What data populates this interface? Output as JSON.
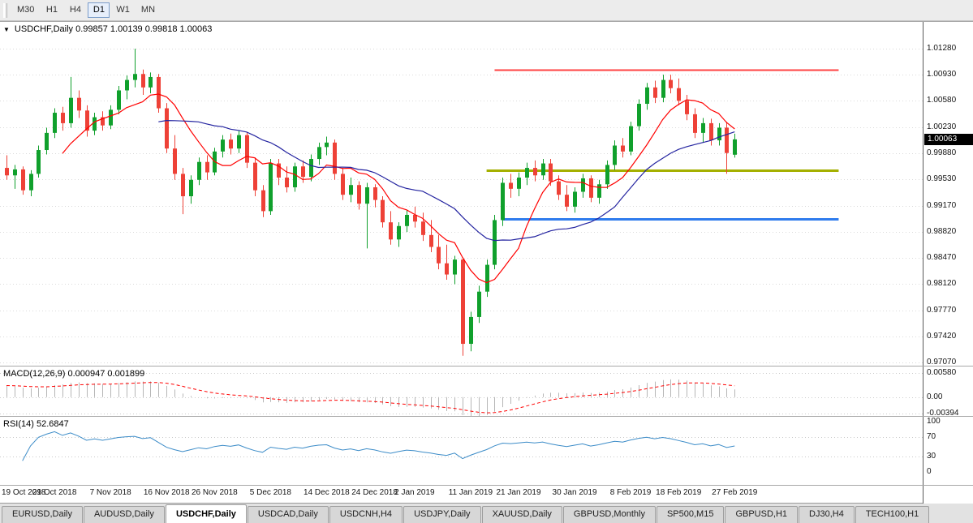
{
  "icons": {
    "collapse_glyph": "▼"
  },
  "toolbar": {
    "timeframes": [
      "M30",
      "H1",
      "H4",
      "D1",
      "W1",
      "MN"
    ],
    "selected": "D1"
  },
  "chart": {
    "title_text": "USDCHF,Daily  0.99857 1.00139 0.99818 1.00063",
    "current_price": "1.00063"
  },
  "chart_data": {
    "type": "candlestick",
    "symbol": "USDCHF",
    "timeframe": "Daily",
    "last_ohlc": {
      "open": 0.99857,
      "high": 1.00139,
      "low": 0.99818,
      "close": 1.00063
    },
    "colors": {
      "up_candle": "#10a02c",
      "down_candle": "#ee4137",
      "grid": "#dadada"
    },
    "y_axis": {
      "top_value": 1.0128,
      "bottom_value": 0.9707,
      "labels": [
        "1.01280",
        "1.00930",
        "1.00580",
        "1.00230",
        "0.99880",
        "0.99530",
        "0.99170",
        "0.98820",
        "0.98470",
        "0.98120",
        "0.97770",
        "0.97420",
        "0.97070"
      ]
    },
    "x_labels": [
      {
        "label": "19 Oct 2018",
        "bar": 0
      },
      {
        "label": "29 Oct 2018",
        "bar": 6
      },
      {
        "label": "7 Nov 2018",
        "bar": 13
      },
      {
        "label": "16 Nov 2018",
        "bar": 20
      },
      {
        "label": "26 Nov 2018",
        "bar": 26
      },
      {
        "label": "5 Dec 2018",
        "bar": 33
      },
      {
        "label": "14 Dec 2018",
        "bar": 40
      },
      {
        "label": "24 Dec 2018",
        "bar": 46
      },
      {
        "label": "2 Jan 2019",
        "bar": 51
      },
      {
        "label": "11 Jan 2019",
        "bar": 58
      },
      {
        "label": "21 Jan 2019",
        "bar": 64
      },
      {
        "label": "30 Jan 2019",
        "bar": 71
      },
      {
        "label": "8 Feb 2019",
        "bar": 78
      },
      {
        "label": "18 Feb 2019",
        "bar": 84
      },
      {
        "label": "27 Feb 2019",
        "bar": 91
      }
    ],
    "candles": [
      [
        0.9968,
        0.9985,
        0.9952,
        0.9958
      ],
      [
        0.9958,
        0.9972,
        0.994,
        0.9966
      ],
      [
        0.9966,
        0.997,
        0.9932,
        0.9938
      ],
      [
        0.9938,
        0.9965,
        0.993,
        0.996
      ],
      [
        0.996,
        0.9998,
        0.9955,
        0.9992
      ],
      [
        0.9992,
        1.0022,
        0.9986,
        1.0015
      ],
      [
        1.0015,
        1.0048,
        1.0008,
        1.0042
      ],
      [
        1.0042,
        1.005,
        1.0018,
        1.0028
      ],
      [
        1.0028,
        1.009,
        1.0022,
        1.0062
      ],
      [
        1.0062,
        1.0072,
        1.0035,
        1.0045
      ],
      [
        1.0045,
        1.0052,
        1.001,
        1.0018
      ],
      [
        1.0018,
        1.0042,
        1.0012,
        1.0036
      ],
      [
        1.0036,
        1.0044,
        1.0018,
        1.0025
      ],
      [
        1.0025,
        1.0052,
        1.002,
        1.0046
      ],
      [
        1.0046,
        1.0078,
        1.004,
        1.0072
      ],
      [
        1.0072,
        1.0092,
        1.006,
        1.0086
      ],
      [
        1.0086,
        1.0128,
        1.0076,
        1.0094
      ],
      [
        1.0094,
        1.01,
        1.0066,
        1.0076
      ],
      [
        1.0076,
        1.0096,
        1.0068,
        1.009
      ],
      [
        1.009,
        1.0094,
        1.0042,
        1.0048
      ],
      [
        1.0048,
        1.0055,
        0.9988,
        0.9994
      ],
      [
        0.9994,
        1.0012,
        0.9952,
        0.996
      ],
      [
        0.996,
        0.9968,
        0.9906,
        0.993
      ],
      [
        0.993,
        0.9958,
        0.992,
        0.9952
      ],
      [
        0.9952,
        0.9982,
        0.9945,
        0.9976
      ],
      [
        0.9976,
        0.9985,
        0.9952,
        0.9962
      ],
      [
        0.9962,
        0.9995,
        0.9958,
        0.999
      ],
      [
        0.999,
        1.0012,
        0.9982,
        1.0006
      ],
      [
        1.0006,
        1.0014,
        0.9986,
        0.9994
      ],
      [
        0.9994,
        1.0018,
        0.9988,
        1.0012
      ],
      [
        1.0012,
        1.0016,
        0.9968,
        0.9975
      ],
      [
        0.9975,
        0.9982,
        0.993,
        0.9938
      ],
      [
        0.9938,
        0.9945,
        0.9902,
        0.991
      ],
      [
        0.991,
        0.998,
        0.9905,
        0.9974
      ],
      [
        0.9974,
        0.998,
        0.9945,
        0.9955
      ],
      [
        0.9955,
        0.997,
        0.9935,
        0.9942
      ],
      [
        0.9942,
        0.9975,
        0.9936,
        0.997
      ],
      [
        0.997,
        0.9978,
        0.9948,
        0.9956
      ],
      [
        0.9956,
        0.9986,
        0.995,
        0.998
      ],
      [
        0.998,
        1.0002,
        0.9972,
        0.9996
      ],
      [
        0.9996,
        1.001,
        0.9985,
        1.0002
      ],
      [
        1.0002,
        1.0006,
        0.9952,
        0.996
      ],
      [
        0.996,
        0.9968,
        0.9925,
        0.9932
      ],
      [
        0.9932,
        0.9955,
        0.9922,
        0.9945
      ],
      [
        0.9945,
        0.995,
        0.9912,
        0.992
      ],
      [
        0.992,
        0.9948,
        0.986,
        0.9942
      ],
      [
        0.9942,
        0.9946,
        0.9915,
        0.9925
      ],
      [
        0.9925,
        0.993,
        0.9888,
        0.9895
      ],
      [
        0.9895,
        0.991,
        0.9865,
        0.9872
      ],
      [
        0.9872,
        0.9895,
        0.9862,
        0.989
      ],
      [
        0.989,
        0.9912,
        0.9882,
        0.9905
      ],
      [
        0.9905,
        0.9916,
        0.9888,
        0.9896
      ],
      [
        0.9896,
        0.9908,
        0.987,
        0.9878
      ],
      [
        0.9878,
        0.9898,
        0.9855,
        0.9862
      ],
      [
        0.9862,
        0.9878,
        0.9832,
        0.984
      ],
      [
        0.984,
        0.9865,
        0.9818,
        0.9825
      ],
      [
        0.9825,
        0.985,
        0.9812,
        0.9845
      ],
      [
        0.9845,
        0.9848,
        0.9716,
        0.9732
      ],
      [
        0.9732,
        0.9775,
        0.9722,
        0.9768
      ],
      [
        0.9768,
        0.981,
        0.976,
        0.9802
      ],
      [
        0.9802,
        0.9845,
        0.9795,
        0.9838
      ],
      [
        0.9838,
        0.9905,
        0.9832,
        0.9898
      ],
      [
        0.9898,
        0.9955,
        0.989,
        0.9948
      ],
      [
        0.9948,
        0.996,
        0.9928,
        0.994
      ],
      [
        0.994,
        0.9962,
        0.993,
        0.9955
      ],
      [
        0.9955,
        0.9975,
        0.9945,
        0.9968
      ],
      [
        0.9968,
        0.9978,
        0.995,
        0.9958
      ],
      [
        0.9958,
        0.998,
        0.9952,
        0.9974
      ],
      [
        0.9974,
        0.998,
        0.9944,
        0.995
      ],
      [
        0.995,
        0.9958,
        0.9925,
        0.9932
      ],
      [
        0.9932,
        0.9945,
        0.991,
        0.9916
      ],
      [
        0.9916,
        0.9942,
        0.9908,
        0.9936
      ],
      [
        0.9936,
        0.996,
        0.9928,
        0.9954
      ],
      [
        0.9954,
        0.9958,
        0.9922,
        0.9928
      ],
      [
        0.9928,
        0.9952,
        0.992,
        0.9946
      ],
      [
        0.9946,
        0.9978,
        0.994,
        0.9972
      ],
      [
        0.9972,
        1.0005,
        0.9965,
        0.9998
      ],
      [
        0.9998,
        1.0008,
        0.9982,
        0.999
      ],
      [
        0.999,
        1.003,
        0.9985,
        1.0024
      ],
      [
        1.0024,
        1.006,
        1.0018,
        1.0054
      ],
      [
        1.0054,
        1.0082,
        1.0046,
        1.0076
      ],
      [
        1.0076,
        1.0085,
        1.0055,
        1.0062
      ],
      [
        1.0062,
        1.0093,
        1.0056,
        1.0086
      ],
      [
        1.0086,
        1.0093,
        1.0068,
        1.0075
      ],
      [
        1.0075,
        1.0088,
        1.0052,
        1.0058
      ],
      [
        1.0058,
        1.0066,
        1.0032,
        1.004
      ],
      [
        1.004,
        1.0048,
        1.0008,
        1.0015
      ],
      [
        1.0015,
        1.0035,
        1.0002,
        1.0028
      ],
      [
        1.0028,
        1.0034,
        0.9998,
        1.0005
      ],
      [
        1.0005,
        1.0028,
        0.9998,
        1.0022
      ],
      [
        1.0022,
        1.003,
        0.996,
        0.9988
      ],
      [
        0.99857,
        1.00139,
        0.99818,
        1.00063
      ]
    ],
    "moving_averages": [
      {
        "period": 8,
        "color": "#ff0000",
        "name": "ma-fast-red"
      },
      {
        "period": 20,
        "color": "#2424a0",
        "name": "ma-slow-blue"
      }
    ],
    "objects": {
      "hlines": [
        {
          "name": "resistance-line",
          "price": 1.01,
          "color": "#ff4040",
          "width": 2,
          "from_bar": 61,
          "to_bar": 104
        },
        {
          "name": "mid-support-line",
          "price": 0.9965,
          "color": "#a4b000",
          "width": 3,
          "from_bar": 60,
          "to_bar": 104
        },
        {
          "name": "lower-support-line",
          "price": 0.99,
          "color": "#2f7ced",
          "width": 3,
          "from_bar": 62,
          "to_bar": 104
        }
      ]
    },
    "indicators": {
      "macd": {
        "title_text": "MACD(12,26,9) 0.000947 0.001899",
        "params": [
          12,
          26,
          9
        ],
        "value": 0.000947,
        "signal": 0.001899,
        "scale": [
          "0.00580",
          "0.00",
          "-0.00394"
        ],
        "histogram_color": "#b6b6b6",
        "signal_color": "#ff0000"
      },
      "rsi": {
        "title_text": "RSI(14) 52.6847",
        "period": 14,
        "value": 52.6847,
        "scale": [
          "100",
          "70",
          "30",
          "0"
        ],
        "levels": [
          70,
          30
        ],
        "color": "#3c8cc8"
      }
    }
  },
  "bottom_tabs": {
    "tabs": [
      "EURUSD,Daily",
      "AUDUSD,Daily",
      "USDCHF,Daily",
      "USDCAD,Daily",
      "USDCNH,H4",
      "USDJPY,Daily",
      "XAUUSD,Daily",
      "GBPUSD,Monthly",
      "SP500,M15",
      "GBPUSD,H1",
      "DJ30,H4",
      "TECH100,H1"
    ],
    "selected": "USDCHF,Daily"
  }
}
